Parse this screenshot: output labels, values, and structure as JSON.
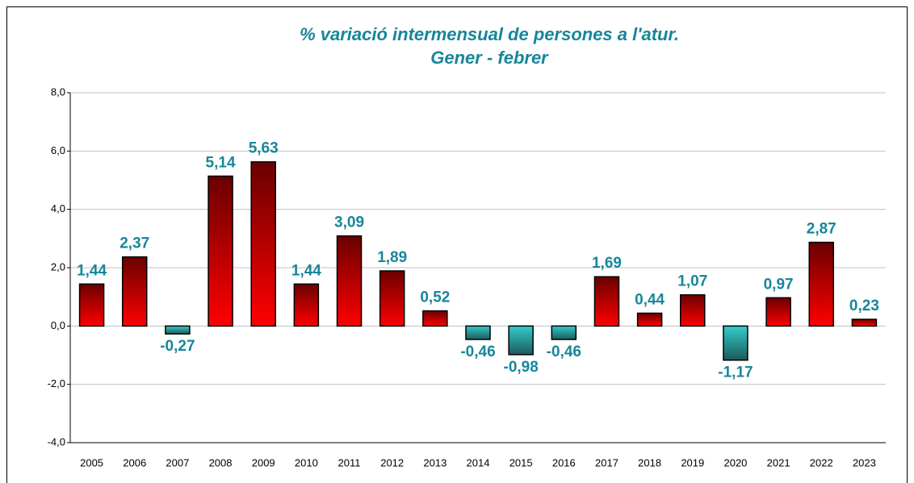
{
  "chart_data": {
    "type": "bar",
    "title": "% variació intermensual de persones a l'atur.",
    "subtitle": "Gener - febrer",
    "categories": [
      "2005",
      "2006",
      "2007",
      "2008",
      "2009",
      "2010",
      "2011",
      "2012",
      "2013",
      "2014",
      "2015",
      "2016",
      "2017",
      "2018",
      "2019",
      "2020",
      "2021",
      "2022",
      "2023"
    ],
    "values": [
      1.44,
      2.37,
      -0.27,
      5.14,
      5.63,
      1.44,
      3.09,
      1.89,
      0.52,
      -0.46,
      -0.98,
      -0.46,
      1.69,
      0.44,
      1.07,
      -1.17,
      0.97,
      2.87,
      0.23
    ],
    "value_labels": [
      "1,44",
      "2,37",
      "-0,27",
      "5,14",
      "5,63",
      "1,44",
      "3,09",
      "1,89",
      "0,52",
      "-0,46",
      "-0,98",
      "-0,46",
      "1,69",
      "0,44",
      "1,07",
      "-1,17",
      "0,97",
      "2,87",
      "0,23"
    ],
    "color": "#ff0000",
    "negative_color": "#33cccc",
    "ylim": [
      -4,
      8
    ],
    "yticks": [
      {
        "value": -4,
        "label": "-4,0"
      },
      {
        "value": -2,
        "label": "-2,0"
      },
      {
        "value": 0,
        "label": "0,0"
      },
      {
        "value": 2,
        "label": "2,0"
      },
      {
        "value": 4,
        "label": "4,0"
      },
      {
        "value": 6,
        "label": "6,0"
      },
      {
        "value": 8,
        "label": "8,0"
      }
    ],
    "grid": true
  }
}
